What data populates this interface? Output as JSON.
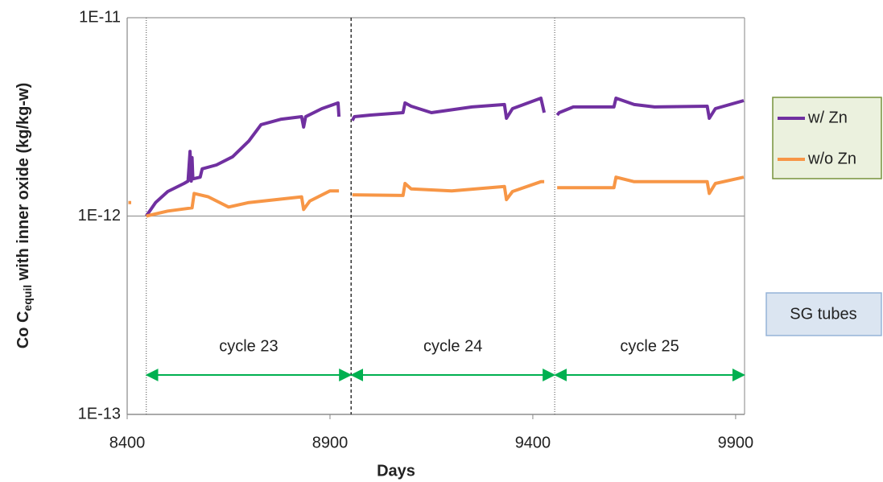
{
  "chart_data": {
    "type": "line",
    "ylabel": {
      "main": "Co C",
      "sub": "equil",
      "rest": " with inner oxide (kg/kg-w)"
    },
    "xlabel": "Days",
    "xlim": [
      8400,
      9922
    ],
    "xticks": [
      8400,
      8900,
      9400,
      9900
    ],
    "ylim": [
      1e-13,
      1e-11
    ],
    "yticks": [
      {
        "value": 1e-13,
        "label": "1E-13"
      },
      {
        "value": 1e-12,
        "label": "1E-12"
      },
      {
        "value": 1e-11,
        "label": "1E-11"
      }
    ],
    "log_y": true,
    "grid": true,
    "legend": "right",
    "series": [
      {
        "name": "w/ Zn",
        "color": "#7030a0",
        "x": [
          8447,
          8470,
          8500,
          8540,
          8550,
          8555,
          8558,
          8560,
          8562,
          8580,
          8585,
          8620,
          8660,
          8700,
          8730,
          8780,
          8830,
          8835,
          8840,
          8880,
          8920,
          8922,
          null,
          8955,
          8960,
          9000,
          9080,
          9085,
          9100,
          9150,
          9250,
          9330,
          9335,
          9350,
          9420,
          9428,
          null,
          9460,
          9465,
          9500,
          9600,
          9605,
          9650,
          9700,
          9830,
          9835,
          9850,
          9920
        ],
        "values": [
          1e-12,
          1.17e-12,
          1.33e-12,
          1.46e-12,
          1.5e-12,
          2.12e-12,
          1.5e-12,
          1.97e-12,
          1.54e-12,
          1.57e-12,
          1.73e-12,
          1.81e-12,
          1.99e-12,
          2.39e-12,
          2.89e-12,
          3.08e-12,
          3.17e-12,
          2.81e-12,
          3.17e-12,
          3.48e-12,
          3.72e-12,
          3.17e-12,
          null,
          3.03e-12,
          3.17e-12,
          3.23e-12,
          3.32e-12,
          3.72e-12,
          3.58e-12,
          3.32e-12,
          3.55e-12,
          3.65e-12,
          3.11e-12,
          3.48e-12,
          3.93e-12,
          3.32e-12,
          null,
          3.23e-12,
          3.32e-12,
          3.55e-12,
          3.55e-12,
          3.93e-12,
          3.65e-12,
          3.55e-12,
          3.58e-12,
          3.11e-12,
          3.48e-12,
          3.82e-12
        ]
      },
      {
        "name": "w/o Zn",
        "color": "#f79646",
        "x": [
          8403,
          8410,
          null,
          8447,
          8500,
          8560,
          8565,
          8600,
          8650,
          8700,
          8830,
          8835,
          8850,
          8900,
          8922,
          null,
          8955,
          9080,
          9085,
          9100,
          9200,
          9330,
          9335,
          9350,
          9420,
          9428,
          null,
          9460,
          9600,
          9605,
          9650,
          9830,
          9835,
          9850,
          9920
        ],
        "values": [
          1.17e-12,
          1.17e-12,
          null,
          1e-12,
          1.06e-12,
          1.1e-12,
          1.3e-12,
          1.25e-12,
          1.11e-12,
          1.17e-12,
          1.25e-12,
          1.08e-12,
          1.19e-12,
          1.34e-12,
          1.34e-12,
          null,
          1.28e-12,
          1.27e-12,
          1.46e-12,
          1.37e-12,
          1.34e-12,
          1.41e-12,
          1.21e-12,
          1.33e-12,
          1.49e-12,
          1.49e-12,
          null,
          1.39e-12,
          1.39e-12,
          1.57e-12,
          1.49e-12,
          1.49e-12,
          1.3e-12,
          1.46e-12,
          1.57e-12
        ]
      }
    ],
    "vlines": [
      {
        "x": 8447,
        "style": "dotted"
      },
      {
        "x": 8952,
        "style": "dashed"
      },
      {
        "x": 9454,
        "style": "dotted"
      }
    ],
    "cycles": [
      {
        "label": "cycle 23",
        "start": 8447,
        "end": 8952
      },
      {
        "label": "cycle 24",
        "start": 8952,
        "end": 9454
      },
      {
        "label": "cycle 25",
        "start": 9454,
        "end": 9922
      }
    ],
    "annotation": "SG tubes"
  }
}
